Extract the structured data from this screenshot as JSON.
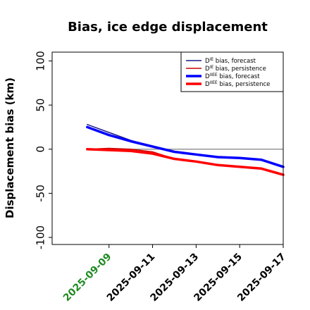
{
  "chart_data": {
    "type": "line",
    "title": "Bias, ice edge displacement",
    "xlabel": "",
    "ylabel": "Displacement bias (km)",
    "ylim": [
      -108,
      110
    ],
    "xlim": [
      "2025-09-06",
      "2025-09-17"
    ],
    "x_ticks": [
      "2025-09-09",
      "2025-09-11",
      "2025-09-13",
      "2025-09-15",
      "2025-09-17"
    ],
    "x_tick_highlight": "2025-09-09",
    "y_ticks": [
      100,
      50,
      0,
      -50,
      -100
    ],
    "grid": false,
    "zero_line": true,
    "legend_position": "top-right",
    "x": [
      "2025-09-08",
      "2025-09-09",
      "2025-09-10",
      "2025-09-11",
      "2025-09-12",
      "2025-09-13",
      "2025-09-14",
      "2025-09-15",
      "2025-09-16",
      "2025-09-17"
    ],
    "series": [
      {
        "name_base": "D",
        "name_sup": "IE",
        "name_rest": " bias, forecast",
        "color": "#1a1a8c",
        "width": 1.5,
        "values": [
          28,
          19,
          10,
          3,
          -3,
          -6,
          -9,
          -10,
          -12,
          -20
        ]
      },
      {
        "name_base": "D",
        "name_sup": "IE",
        "name_rest": " bias, persistence",
        "color": "#cc0000",
        "width": 1.5,
        "values": [
          0,
          1,
          0,
          -3,
          -11,
          -14,
          -18,
          -20,
          -22,
          -29
        ]
      },
      {
        "name_base": "D",
        "name_sup": "IIEE",
        "name_rest": " bias, forecast",
        "color": "#0000ff",
        "width": 3.5,
        "values": [
          25,
          16,
          9,
          3,
          -3,
          -6,
          -9,
          -10,
          -12,
          -20
        ]
      },
      {
        "name_base": "D",
        "name_sup": "IIEE",
        "name_rest": " bias, persistence",
        "color": "#ff0000",
        "width": 3.5,
        "values": [
          0,
          -1,
          -2,
          -5,
          -11,
          -14,
          -18,
          -20,
          -22,
          -29
        ]
      }
    ]
  },
  "colors": {
    "axis": "#000000",
    "highlight_tick": "#228B22",
    "zero_line": "#808080"
  }
}
